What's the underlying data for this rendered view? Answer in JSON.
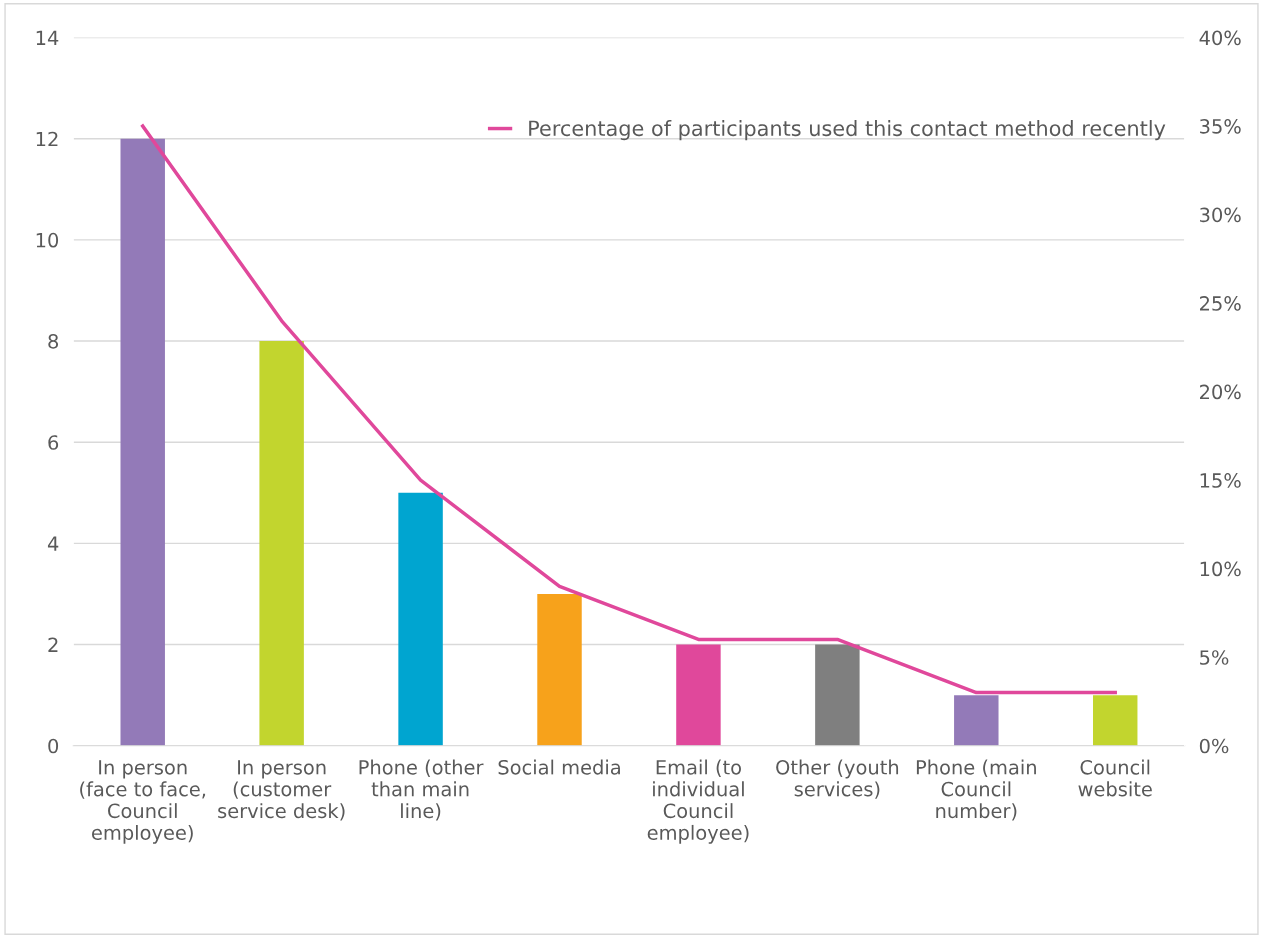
{
  "chart_data": {
    "type": "bar",
    "categories": [
      "In person\n(face to face,\nCouncil\nemployee)",
      "In person\n(customer\nservice desk)",
      "Phone (other\nthan main\nline)",
      "Social media",
      "Email (to\nindividual\nCouncil\nemployee)",
      "Other (youth\nservices)",
      "Phone (main\nCouncil\nnumber)",
      "Council\nwebsite"
    ],
    "series": [
      {
        "colors": [
          "#937ab8",
          "#c2d52e",
          "#00a5d0",
          "#f7a21b",
          "#e0489b",
          "#7f7f7f",
          "#937ab8",
          "#c2d52e"
        ],
        "values": [
          12,
          8,
          5,
          3,
          2,
          2,
          1,
          1
        ]
      },
      {
        "type": "line",
        "axis": "y2",
        "name": "Percentage of participants used this contact method recently",
        "color": "#e0489b",
        "values": [
          35,
          24,
          15,
          9,
          6,
          6,
          3,
          3
        ]
      }
    ],
    "ylim": [
      0,
      14
    ],
    "yticks": [
      0,
      2,
      4,
      6,
      8,
      10,
      12,
      14
    ],
    "y2lim": [
      0,
      40
    ],
    "y2ticks": [
      {
        "value": 0,
        "label": "0%"
      },
      {
        "value": 5,
        "label": "5%"
      },
      {
        "value": 10,
        "label": "10%"
      },
      {
        "value": 15,
        "label": "15%"
      },
      {
        "value": 20,
        "label": "20%"
      },
      {
        "value": 25,
        "label": "25%"
      },
      {
        "value": 30,
        "label": "30%"
      },
      {
        "value": 35,
        "label": "35%"
      },
      {
        "value": 40,
        "label": "40%"
      }
    ],
    "grid": "y",
    "legend": "top right",
    "marker": "none",
    "line_style": "solid"
  }
}
